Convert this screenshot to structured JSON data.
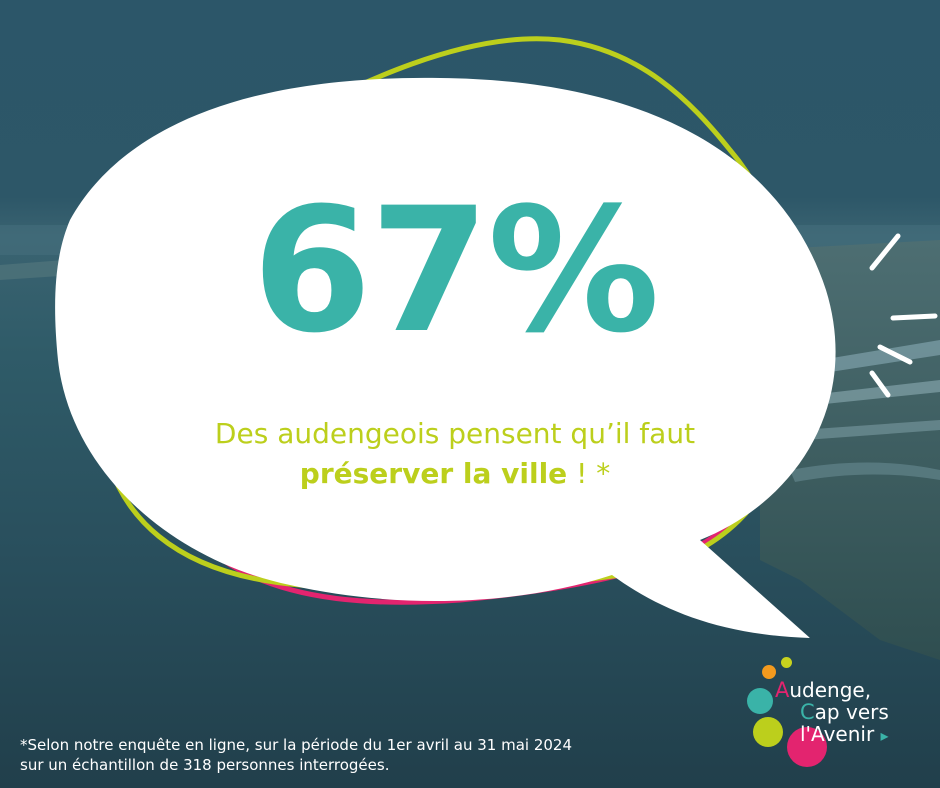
{
  "headline": {
    "value": "67%"
  },
  "caption": {
    "line1": "Des audengeois pensent qu’il faut",
    "line2_strong": "préserver la ville",
    "line2_rest": " ! *"
  },
  "footnote": {
    "line1": "*Selon notre enquête en ligne, sur la période du 1er avril au 31 mai 2024",
    "line2": "sur un échantillon de 318 personnes interrogées."
  },
  "logo": {
    "line1_initial": "A",
    "line1_rest": "udenge,",
    "line2_initial": "C",
    "line2_rest": "ap vers",
    "line3_initial": "l'A",
    "line3_rest": "venir",
    "arrow": "▸"
  },
  "colors": {
    "teal": "#3ab3a8",
    "lime": "#bccf1c",
    "pink": "#e3246f",
    "bubble": "#ffffff",
    "sea": "#2c5669"
  }
}
